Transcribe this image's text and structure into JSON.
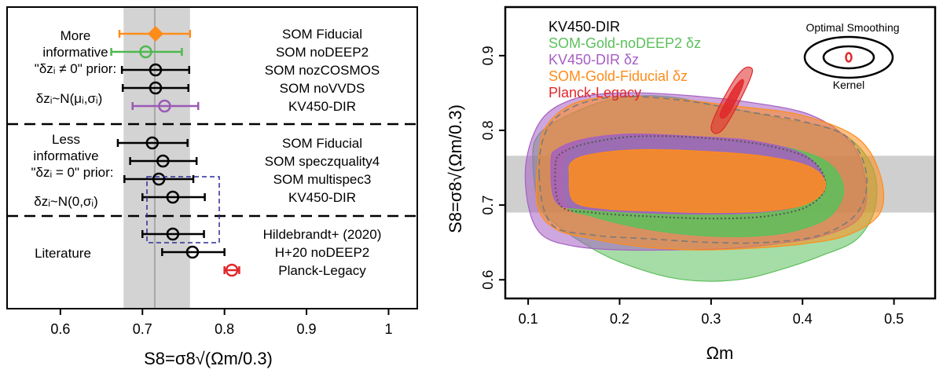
{
  "chart_data": [
    {
      "type": "scatter",
      "subtype": "whisker",
      "xlabel": "S8=σ8√(Ωm/0.3)",
      "xlim": [
        0.535,
        1.035
      ],
      "xticks": [
        "0.6",
        "0.7",
        "0.8",
        "0.9",
        "1"
      ],
      "band": [
        0.677,
        0.758
      ],
      "reference_line": 0.715,
      "group_labels": [
        {
          "lines": [
            "More",
            "informative",
            "\"δzᵢ ≠ 0\" prior:"
          ],
          "prior": "δzᵢ~N(μᵢ,σᵢ)"
        },
        {
          "lines": [
            "Less",
            "informative",
            "\"δzᵢ = 0\" prior:"
          ],
          "prior": "δzᵢ~N(0,σᵢ)"
        },
        {
          "lines": [
            "Literature"
          ],
          "prior": ""
        }
      ],
      "rows": [
        {
          "label": "SOM Fiducial",
          "value": 0.716,
          "lo": 0.672,
          "hi": 0.758,
          "color": "#ff8c1a",
          "marker": "diamond"
        },
        {
          "label": "SOM noDEEP2",
          "value": 0.704,
          "lo": 0.662,
          "hi": 0.748,
          "color": "#4fb84f",
          "marker": "circle"
        },
        {
          "label": "SOM nozCOSMOS",
          "value": 0.716,
          "lo": 0.675,
          "hi": 0.757,
          "color": "#000000",
          "marker": "circle"
        },
        {
          "label": "SOM noVVDS",
          "value": 0.716,
          "lo": 0.676,
          "hi": 0.756,
          "color": "#000000",
          "marker": "circle"
        },
        {
          "label": "KV450-DIR",
          "value": 0.727,
          "lo": 0.688,
          "hi": 0.768,
          "color": "#9b59b6",
          "marker": "circle"
        },
        {
          "label": "SOM Fiducial",
          "value": 0.712,
          "lo": 0.67,
          "hi": 0.755,
          "color": "#000000",
          "marker": "circle"
        },
        {
          "label": "SOM speczquality4",
          "value": 0.725,
          "lo": 0.685,
          "hi": 0.766,
          "color": "#000000",
          "marker": "circle"
        },
        {
          "label": "SOM multispec3",
          "value": 0.72,
          "lo": 0.678,
          "hi": 0.762,
          "color": "#000000",
          "marker": "circle"
        },
        {
          "label": "KV450-DIR",
          "value": 0.737,
          "lo": 0.7,
          "hi": 0.776,
          "color": "#000000",
          "marker": "circle"
        },
        {
          "label": "Hildebrandt+ (2020)",
          "value": 0.737,
          "lo": 0.7,
          "hi": 0.775,
          "color": "#000000",
          "marker": "circle"
        },
        {
          "label": "H+20 noDEEP2",
          "value": 0.761,
          "lo": 0.724,
          "hi": 0.8,
          "color": "#000000",
          "marker": "circle"
        },
        {
          "label": "Planck-Legacy",
          "value": 0.809,
          "lo": 0.8,
          "hi": 0.818,
          "color": "#e0282a",
          "marker": "circle"
        }
      ]
    },
    {
      "type": "contour",
      "xlabel": "Ωm",
      "ylabel": "S8=σ8√(Ωm/0.3)",
      "xlim": [
        0.075,
        0.545
      ],
      "ylim": [
        0.575,
        0.965
      ],
      "xticks": [
        "0.1",
        "0.2",
        "0.3",
        "0.4",
        "0.5"
      ],
      "yticks": [
        "0.6",
        "0.7",
        "0.8",
        "0.9"
      ],
      "band": [
        0.69,
        0.766
      ],
      "legend_position": "top-left",
      "legend": [
        {
          "name": "KV450-DIR",
          "color": "#000000"
        },
        {
          "name": "SOM-Gold-noDEEP2 δz",
          "color": "#5cbf5c"
        },
        {
          "name": "KV450-DIR δz",
          "color": "#a55fc2"
        },
        {
          "name": "SOM-Gold-Fiducial δz",
          "color": "#ff8c1a"
        },
        {
          "name": "Planck-Legacy",
          "color": "#e0282a"
        }
      ],
      "inset": {
        "title": "Optimal Smoothing",
        "caption": "Kernel"
      },
      "contours": [
        {
          "series": "SOM-Gold-noDEEP2 δz",
          "level": "95%",
          "color": "#5cbf5c",
          "points": [
            [
              0.105,
              0.765
            ],
            [
              0.112,
              0.7
            ],
            [
              0.135,
              0.67
            ],
            [
              0.18,
              0.635
            ],
            [
              0.22,
              0.615
            ],
            [
              0.26,
              0.602
            ],
            [
              0.3,
              0.598
            ],
            [
              0.34,
              0.602
            ],
            [
              0.38,
              0.615
            ],
            [
              0.42,
              0.632
            ],
            [
              0.46,
              0.655
            ],
            [
              0.48,
              0.7
            ],
            [
              0.475,
              0.755
            ],
            [
              0.44,
              0.798
            ],
            [
              0.38,
              0.815
            ],
            [
              0.31,
              0.832
            ],
            [
              0.26,
              0.844
            ],
            [
              0.22,
              0.846
            ],
            [
              0.18,
              0.838
            ],
            [
              0.14,
              0.818
            ],
            [
              0.112,
              0.795
            ]
          ]
        },
        {
          "series": "KV450-DIR δz",
          "level": "95%",
          "color": "#a55fc2",
          "points": [
            [
              0.098,
              0.76
            ],
            [
              0.1,
              0.7
            ],
            [
              0.115,
              0.66
            ],
            [
              0.15,
              0.645
            ],
            [
              0.2,
              0.64
            ],
            [
              0.26,
              0.64
            ],
            [
              0.32,
              0.642
            ],
            [
              0.37,
              0.648
            ],
            [
              0.42,
              0.658
            ],
            [
              0.46,
              0.68
            ],
            [
              0.47,
              0.72
            ],
            [
              0.455,
              0.78
            ],
            [
              0.41,
              0.82
            ],
            [
              0.34,
              0.838
            ],
            [
              0.26,
              0.848
            ],
            [
              0.2,
              0.85
            ],
            [
              0.15,
              0.842
            ],
            [
              0.115,
              0.815
            ]
          ]
        },
        {
          "series": "SOM-Gold-Fiducial δz",
          "level": "95%",
          "color": "#ff8c1a",
          "points": [
            [
              0.112,
              0.77
            ],
            [
              0.11,
              0.7
            ],
            [
              0.13,
              0.668
            ],
            [
              0.17,
              0.655
            ],
            [
              0.22,
              0.645
            ],
            [
              0.28,
              0.64
            ],
            [
              0.34,
              0.642
            ],
            [
              0.4,
              0.648
            ],
            [
              0.45,
              0.66
            ],
            [
              0.485,
              0.69
            ],
            [
              0.485,
              0.74
            ],
            [
              0.46,
              0.79
            ],
            [
              0.4,
              0.82
            ],
            [
              0.33,
              0.832
            ],
            [
              0.26,
              0.842
            ],
            [
              0.2,
              0.845
            ],
            [
              0.15,
              0.836
            ],
            [
              0.12,
              0.806
            ]
          ]
        },
        {
          "series": "KV450-DIR",
          "level": "95%",
          "color": "#7a7a7a",
          "dashed": true,
          "points": [
            [
              0.112,
              0.74
            ],
            [
              0.125,
              0.675
            ],
            [
              0.17,
              0.66
            ],
            [
              0.23,
              0.655
            ],
            [
              0.3,
              0.65
            ],
            [
              0.36,
              0.65
            ],
            [
              0.42,
              0.66
            ],
            [
              0.46,
              0.69
            ],
            [
              0.47,
              0.74
            ],
            [
              0.45,
              0.79
            ],
            [
              0.4,
              0.812
            ],
            [
              0.34,
              0.825
            ],
            [
              0.27,
              0.84
            ],
            [
              0.2,
              0.845
            ],
            [
              0.15,
              0.832
            ],
            [
              0.12,
              0.8
            ]
          ]
        },
        {
          "series": "SOM-Gold-noDEEP2 δz",
          "level": "68%",
          "color": "#5cbf5c",
          "points": [
            [
              0.14,
              0.76
            ],
            [
              0.142,
              0.7
            ],
            [
              0.17,
              0.685
            ],
            [
              0.22,
              0.67
            ],
            [
              0.28,
              0.66
            ],
            [
              0.34,
              0.658
            ],
            [
              0.39,
              0.665
            ],
            [
              0.43,
              0.685
            ],
            [
              0.445,
              0.72
            ],
            [
              0.43,
              0.755
            ],
            [
              0.39,
              0.775
            ],
            [
              0.33,
              0.785
            ],
            [
              0.26,
              0.79
            ],
            [
              0.2,
              0.792
            ],
            [
              0.16,
              0.784
            ]
          ]
        },
        {
          "series": "KV450-DIR δz",
          "level": "68%",
          "color": "#a55fc2",
          "points": [
            [
              0.125,
              0.76
            ],
            [
              0.13,
              0.705
            ],
            [
              0.16,
              0.695
            ],
            [
              0.22,
              0.69
            ],
            [
              0.29,
              0.688
            ],
            [
              0.35,
              0.69
            ],
            [
              0.4,
              0.7
            ],
            [
              0.425,
              0.725
            ],
            [
              0.405,
              0.765
            ],
            [
              0.35,
              0.785
            ],
            [
              0.28,
              0.792
            ],
            [
              0.21,
              0.795
            ],
            [
              0.16,
              0.788
            ],
            [
              0.132,
              0.775
            ]
          ]
        },
        {
          "series": "KV450-DIR",
          "level": "68%",
          "color": "#555555",
          "dotted": true,
          "points": [
            [
              0.13,
              0.755
            ],
            [
              0.135,
              0.7
            ],
            [
              0.17,
              0.69
            ],
            [
              0.23,
              0.685
            ],
            [
              0.3,
              0.682
            ],
            [
              0.36,
              0.685
            ],
            [
              0.405,
              0.698
            ],
            [
              0.425,
              0.725
            ],
            [
              0.41,
              0.76
            ],
            [
              0.36,
              0.78
            ],
            [
              0.29,
              0.79
            ],
            [
              0.22,
              0.792
            ],
            [
              0.17,
              0.784
            ],
            [
              0.14,
              0.772
            ]
          ]
        },
        {
          "series": "SOM-Gold-Fiducial δz",
          "level": "68%",
          "color": "#ff8c1a",
          "points": [
            [
              0.145,
              0.74
            ],
            [
              0.15,
              0.705
            ],
            [
              0.185,
              0.695
            ],
            [
              0.24,
              0.692
            ],
            [
              0.3,
              0.69
            ],
            [
              0.36,
              0.692
            ],
            [
              0.405,
              0.702
            ],
            [
              0.425,
              0.725
            ],
            [
              0.41,
              0.75
            ],
            [
              0.36,
              0.765
            ],
            [
              0.29,
              0.772
            ],
            [
              0.22,
              0.774
            ],
            [
              0.17,
              0.768
            ],
            [
              0.148,
              0.758
            ]
          ]
        },
        {
          "series": "Planck-Legacy",
          "level": "95%",
          "color": "#e0282a",
          "points": [
            [
              0.3,
              0.804
            ],
            [
              0.304,
              0.796
            ],
            [
              0.312,
              0.8
            ],
            [
              0.322,
              0.818
            ],
            [
              0.334,
              0.846
            ],
            [
              0.343,
              0.87
            ],
            [
              0.345,
              0.882
            ],
            [
              0.338,
              0.884
            ],
            [
              0.328,
              0.872
            ],
            [
              0.316,
              0.848
            ],
            [
              0.305,
              0.822
            ]
          ]
        },
        {
          "series": "Planck-Legacy",
          "level": "68%",
          "color": "#e0282a",
          "points": [
            [
              0.31,
              0.822
            ],
            [
              0.313,
              0.816
            ],
            [
              0.32,
              0.824
            ],
            [
              0.328,
              0.842
            ],
            [
              0.335,
              0.862
            ],
            [
              0.334,
              0.868
            ],
            [
              0.327,
              0.86
            ],
            [
              0.318,
              0.842
            ]
          ]
        }
      ]
    }
  ]
}
